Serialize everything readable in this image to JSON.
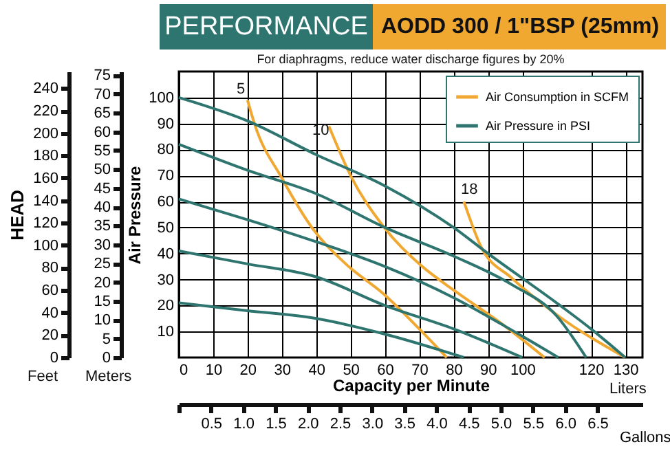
{
  "chart_data": {
    "type": "line",
    "title": "PERFORMANCE",
    "subtitle": "AODD 300 / 1\"BSP (25mm)",
    "xlabel": "Capacity per Minute",
    "ylabel": "Air Pressure",
    "y3label": "HEAD",
    "x2label": "Gallons",
    "annotations": [
      "For diaphragms, reduce water discharge figures by 20%",
      "Feet",
      "Meters",
      "Liters",
      "5",
      "10",
      "18"
    ],
    "xlim": [
      0,
      135
    ],
    "xticks": [
      0,
      10,
      20,
      30,
      40,
      50,
      60,
      70,
      80,
      90,
      100,
      120,
      130
    ],
    "ylim": [
      0,
      110
    ],
    "yticks": [
      10,
      20,
      30,
      40,
      50,
      60,
      70,
      80,
      90,
      100
    ],
    "y2lim": [
      0,
      76
    ],
    "y2ticks": [
      0,
      5,
      10,
      15,
      20,
      25,
      30,
      35,
      40,
      45,
      50,
      55,
      60,
      65,
      70,
      75
    ],
    "y3lim": [
      0,
      255
    ],
    "y3ticks": [
      0,
      20,
      40,
      60,
      80,
      100,
      120,
      140,
      160,
      180,
      200,
      220,
      240
    ],
    "x2lim": [
      0,
      7.2
    ],
    "x2ticks": [
      {
        "value": 0,
        "label": null
      },
      0.5,
      {
        "value": 1,
        "label": "1.0"
      },
      1.5,
      {
        "value": 2,
        "label": "2.0"
      },
      2.5,
      {
        "value": 3,
        "label": "3.0"
      },
      3.5,
      {
        "value": 4,
        "label": "4.0"
      },
      4.5,
      {
        "value": 5,
        "label": "5.0"
      },
      5.5,
      {
        "value": 6,
        "label": "6.0"
      },
      6.5
    ],
    "grid": true,
    "legend": "top right",
    "series": [
      {
        "name": "Air Consumption in SCFM",
        "color": "#f0a830",
        "x": [
          20,
          22,
          30,
          39,
          48.6,
          60,
          70,
          78,
          null,
          43.7,
          50,
          59.5,
          70,
          81,
          94,
          106.5,
          null,
          83,
          88,
          97,
          110.5,
          130
        ],
        "values": [
          99,
          90,
          69,
          49.5,
          36,
          24,
          11,
          0,
          null,
          89,
          70,
          50.5,
          36,
          25,
          13,
          0,
          null,
          60,
          42.6,
          30.5,
          16,
          0
        ]
      },
      {
        "name": "Air Pressure in PSI",
        "color": "#2e7570",
        "x": [
          0,
          20,
          40,
          60,
          80,
          90,
          110,
          120,
          130,
          null,
          0,
          20,
          40,
          60,
          80,
          97,
          110,
          118.6,
          null,
          0,
          20,
          40,
          60,
          80,
          95,
          110.5,
          null,
          0,
          20,
          40,
          60,
          80,
          100,
          null,
          0,
          20,
          40,
          60,
          83
        ],
        "values": [
          100,
          91,
          78,
          66,
          50,
          40,
          21,
          11,
          0,
          null,
          82,
          72,
          63,
          50,
          39,
          28,
          16,
          0,
          null,
          61,
          53,
          44.5,
          35,
          23,
          12,
          0,
          null,
          41,
          36,
          31,
          20,
          11,
          0,
          null,
          21,
          18,
          15,
          9,
          0
        ]
      }
    ]
  }
}
